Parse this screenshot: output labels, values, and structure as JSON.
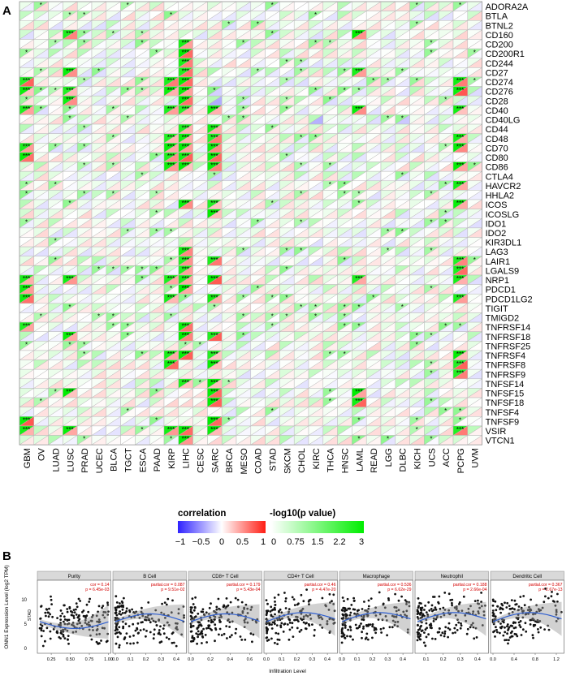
{
  "panel_labels": {
    "a": "A",
    "b": "B"
  },
  "chart_data": [
    {
      "type": "heatmap",
      "subtype": "triangle-split correlation/significance grid",
      "title": "",
      "columns": [
        "GBM",
        "OV",
        "LUAD",
        "LUSC",
        "PRAD",
        "UCEC",
        "BLCA",
        "TGCT",
        "ESCA",
        "PAAD",
        "KIRP",
        "LIHC",
        "CESC",
        "SARC",
        "BRCA",
        "MESO",
        "COAD",
        "STAD",
        "SKCM",
        "CHOL",
        "KIRC",
        "THCA",
        "HNSC",
        "LAML",
        "READ",
        "LGG",
        "DLBC",
        "KICH",
        "UCS",
        "ACC",
        "PCPG",
        "UVM"
      ],
      "rows": [
        "ADORA2A",
        "BTLA",
        "BTNL2",
        "CD160",
        "CD200",
        "CD200R1",
        "CD244",
        "CD27",
        "CD274",
        "CD276",
        "CD28",
        "CD40",
        "CD40LG",
        "CD44",
        "CD48",
        "CD70",
        "CD80",
        "CD86",
        "CTLA4",
        "HAVCR2",
        "HHLA2",
        "ICOS",
        "ICOSLG",
        "IDO1",
        "IDO2",
        "KIR3DL1",
        "LAG3",
        "LAIR1",
        "LGALS9",
        "NRP1",
        "PDCD1",
        "PDCD1LG2",
        "TIGIT",
        "TMIGD2",
        "TNFRSF14",
        "TNFRSF18",
        "TNFRSF25",
        "TNFRSF4",
        "TNFRSF8",
        "TNFRSF9",
        "TNFSF14",
        "TNFSF15",
        "TNFSF18",
        "TNFSF4",
        "TNFSF9",
        "VSIR",
        "VTCN1"
      ],
      "strong_positive": {
        "GBM": [
          "CD274",
          "CD276",
          "CD40",
          "CD70",
          "CD80",
          "NRP1",
          "PDCD1",
          "PDCD1LG2",
          "TNFRSF14",
          "TNFSF9",
          "VSIR"
        ],
        "LUSC": [
          "CD160",
          "CD27",
          "CD276",
          "CD28",
          "NRP1",
          "TNFRSF18",
          "TNFSF15",
          "VSIR"
        ],
        "KIRP": [
          "CD274",
          "CD276",
          "CD40",
          "CD48",
          "CD70",
          "CD80",
          "CD86",
          "NRP1",
          "PDCD1LG2",
          "TNFRSF4",
          "TNFRSF8",
          "VSIR"
        ],
        "LIHC": [
          "CD200",
          "CD200R1",
          "CD244",
          "CD27",
          "CD274",
          "CD276",
          "CD28",
          "CD40",
          "CD44",
          "CD48",
          "CD70",
          "CD80",
          "CD86",
          "ICOS",
          "LAG3",
          "LAIR1",
          "LGALS9",
          "NRP1",
          "PDCD1",
          "TNFRSF14",
          "TNFRSF18",
          "TNFRSF4",
          "TNFSF14",
          "VSIR",
          "VTCN1"
        ],
        "SARC": [
          "CD40",
          "CD44",
          "CD48",
          "CD70",
          "CD80",
          "CD86",
          "ICOS",
          "ICOSLG",
          "LAIR1",
          "NRP1",
          "PDCD1LG2",
          "TNFRSF18",
          "TNFRSF4",
          "TNFRSF8",
          "TNFSF14",
          "TNFSF15",
          "TNFSF18",
          "TNFSF9",
          "VSIR"
        ],
        "LAML": [
          "CD160",
          "CD27",
          "CD40",
          "NRP1",
          "TNFSF15",
          "TNFSF18"
        ],
        "PCPG": [
          "CD274",
          "CD276",
          "CD40",
          "CD48",
          "CD70",
          "CD86",
          "HAVCR2",
          "ICOS",
          "LAIR1",
          "LGALS9",
          "NRP1",
          "PDCD1LG2",
          "TNFRSF4",
          "TNFRSF8",
          "TNFRSF9",
          "VSIR"
        ]
      },
      "negative_cells": {
        "SARC": [
          "CD276",
          "CD28",
          "CD40",
          "CD80",
          "CTLA4"
        ],
        "UVM": [
          "CD276"
        ],
        "KIRC": [
          "CD40LG"
        ],
        "DLBC": [
          "CD40LG"
        ]
      },
      "legend": {
        "correlation": {
          "title": "correlation",
          "ticks": [
            "−1",
            "−0.5",
            "0",
            "0.5",
            "1"
          ],
          "colors": [
            "#2f22ff",
            "#ffffff",
            "#ff1e14"
          ]
        },
        "pvalue": {
          "title": "-log10(p value)",
          "ticks": [
            "0",
            "0.75",
            "1.5",
            "2.2",
            "3"
          ],
          "colors": [
            "#ffffff",
            "#00ee00"
          ]
        }
      }
    },
    {
      "type": "scatter",
      "ylabel": "ONN1 Expression Level (log2 TPM)",
      "xlabel": "Infiltration Level",
      "side_label": "STAD",
      "yticks": [
        "0",
        "5",
        "10"
      ],
      "panels": [
        {
          "name": "Purity",
          "stat1": "cor = 0.14",
          "stat2": "p = 6.45e-03",
          "xticks": [
            "0.25",
            "0.50",
            "0.75",
            "1.00"
          ],
          "xlim": [
            0.1,
            1.0
          ]
        },
        {
          "name": "B Cell",
          "stat1": "partial.cor = 0.087",
          "stat2": "p = 9.51e-02",
          "xticks": [
            "0.0",
            "0.1",
            "0.2",
            "0.3",
            "0.4"
          ],
          "xlim": [
            0,
            0.45
          ]
        },
        {
          "name": "CD8+ T Cell",
          "stat1": "partial.cor = 0.179",
          "stat2": "p = 5.43e-04",
          "xticks": [
            "0.0",
            "0.2",
            "0.4",
            "0.6"
          ],
          "xlim": [
            0,
            0.7
          ]
        },
        {
          "name": "CD4+ T Cell",
          "stat1": "partial.cor = 0.46",
          "stat2": "p = 4.47e-20",
          "xticks": [
            "0.0",
            "0.1",
            "0.2",
            "0.3",
            "0.4"
          ],
          "xlim": [
            0,
            0.45
          ]
        },
        {
          "name": "Macrophage",
          "stat1": "partial.cor = 0.536",
          "stat2": "p = 6.62e-29",
          "xticks": [
            "0.0",
            "0.1",
            "0.2",
            "0.3",
            "0.4"
          ],
          "xlim": [
            0,
            0.45
          ]
        },
        {
          "name": "Neutrophil",
          "stat1": "partial.cor = 0.188",
          "stat2": "p = 2.66e-04",
          "xticks": [
            "0.1",
            "0.2",
            "0.3",
            "0.4"
          ],
          "xlim": [
            0.05,
            0.45
          ]
        },
        {
          "name": "Dendritic Cell",
          "stat1": "partial.cor = 0.367",
          "stat2": "p = 2.67e-13",
          "xticks": [
            "0.0",
            "0.4",
            "0.8",
            "1.2"
          ],
          "xlim": [
            0,
            1.3
          ]
        }
      ]
    }
  ]
}
